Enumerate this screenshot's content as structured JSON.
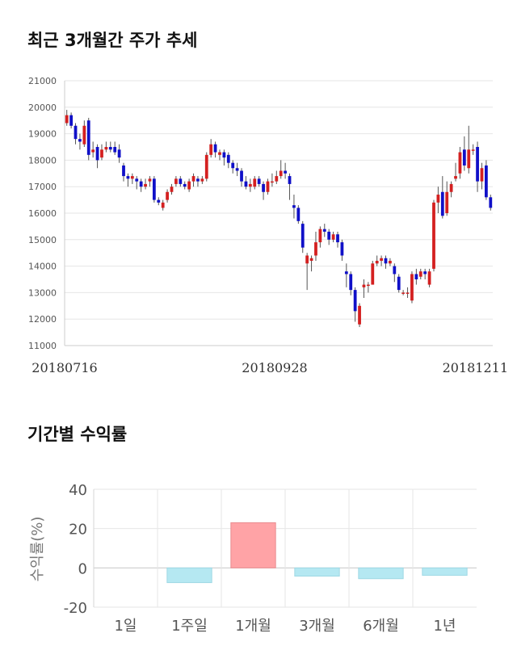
{
  "titles": {
    "price_trend": "최근 3개월간 주가 추세",
    "period_returns": "기간별 수익률"
  },
  "colors": {
    "up": "#d42020",
    "down": "#1010c8",
    "positive_bar": "#ffa3a6",
    "negative_bar": "#b5e8f2",
    "grid": "#e6e6e6"
  },
  "chart_data": [
    {
      "type": "candlestick",
      "title": "최근 3개월간 주가 추세",
      "ylim": [
        11000,
        21000
      ],
      "yticks": [
        11000,
        12000,
        13000,
        14000,
        15000,
        16000,
        17000,
        18000,
        19000,
        20000,
        21000
      ],
      "x_tick_labels": [
        "20180716",
        "20180928",
        "20181211"
      ],
      "grid": true,
      "ohlc": [
        [
          19400,
          19700,
          19900,
          19300
        ],
        [
          19700,
          19300,
          19800,
          19200
        ],
        [
          19300,
          18800,
          19400,
          18600
        ],
        [
          18800,
          18700,
          19000,
          18400
        ],
        [
          18600,
          19300,
          19500,
          18500
        ],
        [
          19500,
          18200,
          19600,
          18000
        ],
        [
          18300,
          18400,
          18700,
          18100
        ],
        [
          18500,
          18000,
          18600,
          17700
        ],
        [
          18100,
          18400,
          18600,
          18000
        ],
        [
          18400,
          18500,
          18700,
          18300
        ],
        [
          18500,
          18400,
          18700,
          18300
        ],
        [
          18500,
          18300,
          18700,
          18200
        ],
        [
          18400,
          18100,
          18600,
          17900
        ],
        [
          17800,
          17400,
          17900,
          17200
        ],
        [
          17400,
          17300,
          17500,
          17000
        ],
        [
          17300,
          17400,
          17500,
          17100
        ],
        [
          17300,
          17200,
          17400,
          16900
        ],
        [
          17200,
          17000,
          17300,
          16800
        ],
        [
          17000,
          17100,
          17300,
          16900
        ],
        [
          17200,
          17300,
          17400,
          17000
        ],
        [
          17300,
          16500,
          17400,
          16400
        ],
        [
          16500,
          16400,
          16600,
          16300
        ],
        [
          16200,
          16400,
          16500,
          16100
        ],
        [
          16500,
          16800,
          16900,
          16400
        ],
        [
          16800,
          17000,
          17100,
          16700
        ],
        [
          17100,
          17300,
          17400,
          17000
        ],
        [
          17300,
          17100,
          17400,
          17000
        ],
        [
          17100,
          17000,
          17200,
          16900
        ],
        [
          16900,
          17200,
          17300,
          16800
        ],
        [
          17200,
          17400,
          17500,
          17000
        ],
        [
          17300,
          17200,
          17400,
          17000
        ],
        [
          17200,
          17300,
          17400,
          17100
        ],
        [
          17300,
          18200,
          18300,
          17200
        ],
        [
          18200,
          18600,
          18800,
          18100
        ],
        [
          18600,
          18300,
          18700,
          18100
        ],
        [
          18200,
          18300,
          18400,
          18000
        ],
        [
          18300,
          18100,
          18400,
          17800
        ],
        [
          18200,
          17900,
          18300,
          17700
        ],
        [
          17900,
          17700,
          18000,
          17500
        ],
        [
          17700,
          17600,
          17900,
          17400
        ],
        [
          17600,
          17200,
          17700,
          17000
        ],
        [
          17200,
          17000,
          17400,
          16900
        ],
        [
          17000,
          17100,
          17300,
          16800
        ],
        [
          17000,
          17300,
          17400,
          16900
        ],
        [
          17300,
          17100,
          17400,
          17000
        ],
        [
          17100,
          16800,
          17200,
          16500
        ],
        [
          16800,
          17200,
          17300,
          16700
        ],
        [
          17200,
          17200,
          17500,
          17000
        ],
        [
          17200,
          17400,
          17600,
          17100
        ],
        [
          17400,
          17600,
          18000,
          17300
        ],
        [
          17600,
          17500,
          17900,
          17300
        ],
        [
          17400,
          17100,
          17500,
          16500
        ],
        [
          16300,
          16200,
          16700,
          15800
        ],
        [
          16200,
          15700,
          16300,
          15600
        ],
        [
          15600,
          14700,
          15700,
          14500
        ],
        [
          14100,
          14400,
          14500,
          13100
        ],
        [
          14200,
          14300,
          14400,
          13800
        ],
        [
          14400,
          14900,
          15300,
          14200
        ],
        [
          14900,
          15400,
          15500,
          14700
        ],
        [
          15400,
          15300,
          15600,
          15100
        ],
        [
          15300,
          15000,
          15400,
          14800
        ],
        [
          15000,
          15200,
          15300,
          14900
        ],
        [
          15200,
          14900,
          15300,
          14700
        ],
        [
          14900,
          14400,
          15000,
          14200
        ],
        [
          13800,
          13700,
          14100,
          13200
        ],
        [
          13700,
          13100,
          13800,
          12900
        ],
        [
          13100,
          12300,
          13200,
          11900
        ],
        [
          11800,
          12500,
          12600,
          11700
        ],
        [
          13200,
          13300,
          13500,
          12800
        ],
        [
          13300,
          13300,
          13400,
          13000
        ],
        [
          13300,
          14100,
          14200,
          13300
        ],
        [
          14100,
          14200,
          14400,
          14000
        ],
        [
          14200,
          14300,
          14400,
          14000
        ],
        [
          14300,
          14100,
          14400,
          13900
        ],
        [
          14100,
          14200,
          14300,
          14000
        ],
        [
          14000,
          13700,
          14100,
          13400
        ],
        [
          13600,
          13100,
          13700,
          13000
        ],
        [
          13000,
          13000,
          13100,
          12900
        ],
        [
          13000,
          13000,
          13200,
          12800
        ],
        [
          12700,
          13700,
          13800,
          12600
        ],
        [
          13700,
          13500,
          13900,
          13300
        ],
        [
          13600,
          13800,
          13900,
          13500
        ],
        [
          13800,
          13700,
          13900,
          13500
        ],
        [
          13300,
          13800,
          13900,
          13200
        ],
        [
          13900,
          16400,
          16500,
          13800
        ],
        [
          16400,
          16700,
          17000,
          16000
        ],
        [
          16800,
          15900,
          17400,
          15800
        ],
        [
          16000,
          16800,
          17200,
          15900
        ],
        [
          16800,
          17100,
          17200,
          16600
        ],
        [
          17300,
          17400,
          17900,
          17200
        ],
        [
          17500,
          18300,
          18500,
          17300
        ],
        [
          18400,
          17800,
          18900,
          17600
        ],
        [
          17700,
          18400,
          19300,
          17500
        ],
        [
          18400,
          18400,
          18600,
          18200
        ],
        [
          18500,
          17200,
          18700,
          16800
        ],
        [
          17200,
          17700,
          17900,
          16900
        ],
        [
          17800,
          16600,
          18000,
          16500
        ],
        [
          16600,
          16200,
          16700,
          16100
        ]
      ]
    },
    {
      "type": "bar",
      "title": "기간별 수익률",
      "categories": [
        "1일",
        "1주일",
        "1개월",
        "3개월",
        "6개월",
        "1년"
      ],
      "values": [
        0,
        -7.5,
        23,
        -4.2,
        -5.5,
        -3.8
      ],
      "ylabel": "수익률(%)",
      "ylim": [
        -20,
        40
      ],
      "yticks": [
        -20,
        0,
        20,
        40
      ],
      "grid": true
    }
  ]
}
